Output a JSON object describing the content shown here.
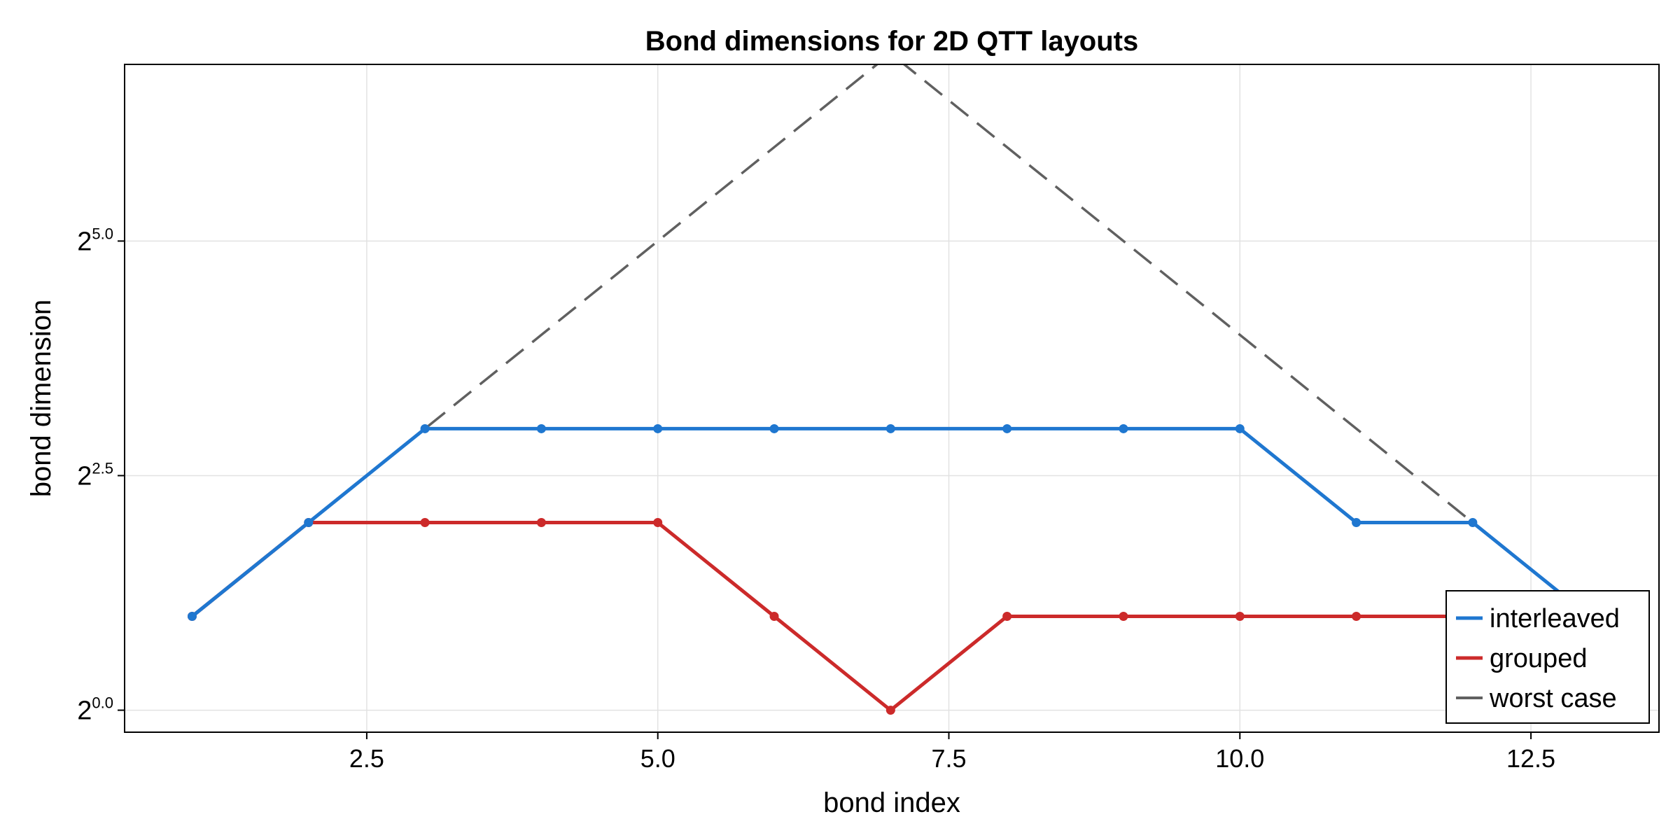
{
  "chart_data": {
    "type": "line",
    "title": "Bond dimensions for 2D QTT layouts",
    "xlabel": "bond index",
    "ylabel": "bond dimension",
    "y_scale": "log2",
    "xlim": [
      0.42,
      13.6
    ],
    "ylim": [
      0.85,
      118
    ],
    "x_ticks": [
      2.5,
      5.0,
      7.5,
      10.0,
      12.5
    ],
    "x_tick_labels": [
      "2.5",
      "5.0",
      "7.5",
      "10.0",
      "12.5"
    ],
    "y_ticks": [
      1,
      5.657,
      32
    ],
    "y_tick_labels": [
      {
        "base": "2",
        "exp": "0.0"
      },
      {
        "base": "2",
        "exp": "2.5"
      },
      {
        "base": "2",
        "exp": "5.0"
      }
    ],
    "grid": true,
    "legend_position": "bottom-right",
    "series": [
      {
        "name": "interleaved",
        "color": "#1f77d0",
        "style": "solid",
        "markers": true,
        "x": [
          1,
          2,
          3,
          4,
          5,
          6,
          7,
          8,
          9,
          10,
          11,
          12,
          13
        ],
        "y": [
          2,
          4,
          8,
          8,
          8,
          8,
          8,
          8,
          8,
          8,
          4,
          4,
          2
        ]
      },
      {
        "name": "grouped",
        "color": "#cc2a2a",
        "style": "solid",
        "markers": true,
        "x": [
          1,
          2,
          3,
          4,
          5,
          6,
          7,
          8,
          9,
          10,
          11,
          12,
          13
        ],
        "y": [
          2,
          4,
          4,
          4,
          4,
          2,
          1,
          2,
          2,
          2,
          2,
          2,
          2
        ]
      },
      {
        "name": "worst case",
        "color": "#606060",
        "style": "dashed",
        "markers": false,
        "x": [
          1,
          2,
          3,
          4,
          5,
          6,
          7,
          8,
          9,
          10,
          11,
          12,
          13
        ],
        "y": [
          2,
          4,
          8,
          16,
          32,
          64,
          128,
          64,
          32,
          16,
          8,
          4,
          2
        ]
      }
    ]
  }
}
